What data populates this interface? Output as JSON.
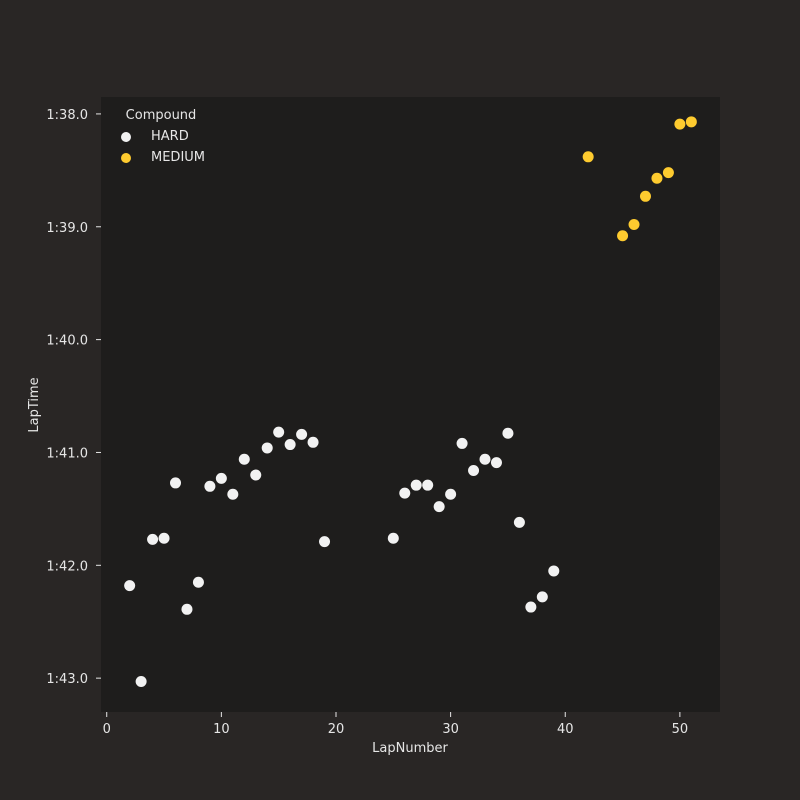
{
  "chart_data": {
    "type": "scatter",
    "xlabel": "LapNumber",
    "ylabel": "LapTime",
    "xlim": [
      -0.5,
      53.5
    ],
    "ylim": [
      103.3,
      97.85
    ],
    "x_ticks": [
      0,
      10,
      20,
      30,
      40,
      50
    ],
    "y_ticks": [
      {
        "value": 98.0,
        "label": "1:38.0"
      },
      {
        "value": 99.0,
        "label": "1:39.0"
      },
      {
        "value": 100.0,
        "label": "1:40.0"
      },
      {
        "value": 101.0,
        "label": "1:41.0"
      },
      {
        "value": 102.0,
        "label": "1:42.0"
      },
      {
        "value": 103.0,
        "label": "1:43.0"
      }
    ],
    "legend": {
      "title": "Compound",
      "position": "top-left"
    },
    "series": [
      {
        "name": "HARD",
        "color": "#f2f2f2",
        "points": [
          [
            2,
            102.18
          ],
          [
            3,
            103.03
          ],
          [
            4,
            101.77
          ],
          [
            5,
            101.76
          ],
          [
            6,
            101.27
          ],
          [
            7,
            102.39
          ],
          [
            8,
            102.15
          ],
          [
            9,
            101.3
          ],
          [
            10,
            101.23
          ],
          [
            11,
            101.37
          ],
          [
            12,
            101.06
          ],
          [
            13,
            101.2
          ],
          [
            14,
            100.96
          ],
          [
            15,
            100.82
          ],
          [
            16,
            100.93
          ],
          [
            17,
            100.84
          ],
          [
            18,
            100.91
          ],
          [
            19,
            101.79
          ],
          [
            25,
            101.76
          ],
          [
            26,
            101.36
          ],
          [
            27,
            101.29
          ],
          [
            28,
            101.29
          ],
          [
            29,
            101.48
          ],
          [
            30,
            101.37
          ],
          [
            31,
            100.92
          ],
          [
            32,
            101.16
          ],
          [
            33,
            101.06
          ],
          [
            34,
            101.09
          ],
          [
            35,
            100.83
          ],
          [
            36,
            101.62
          ],
          [
            37,
            102.37
          ],
          [
            38,
            102.28
          ],
          [
            39,
            102.05
          ]
        ]
      },
      {
        "name": "MEDIUM",
        "color": "#fecb2f",
        "points": [
          [
            42,
            98.38
          ],
          [
            45,
            99.08
          ],
          [
            46,
            98.98
          ],
          [
            47,
            98.73
          ],
          [
            48,
            98.57
          ],
          [
            49,
            98.52
          ],
          [
            50,
            98.09
          ],
          [
            51,
            98.07
          ]
        ]
      }
    ]
  }
}
